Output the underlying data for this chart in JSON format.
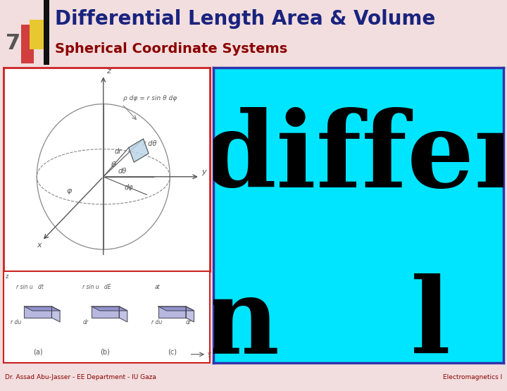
{
  "title_main": "Differential Length Area & Volume",
  "title_sub": "Spherical Coordinate Systems",
  "slide_number": "7",
  "author_left": "Dr. Assad Abu-Jasser - EE Department - IU Gaza",
  "author_right": "Electromagnetics I",
  "bg_color": "#f2dede",
  "header_bg": "#f2dede",
  "title_color": "#1a237e",
  "subtitle_color": "#8b0000",
  "bar_yellow": "#e8c830",
  "bar_red": "#cc2222",
  "bar_black": "#111111",
  "divider_color": "#8b0000",
  "left_panel_border": "#cc2222",
  "right_panel_border": "#3333aa",
  "right_panel_bg": "#00e5ff",
  "left_panel_bg": "#ffffff",
  "footer_text_color": "#8b0000",
  "slide_num_color": "#555555"
}
